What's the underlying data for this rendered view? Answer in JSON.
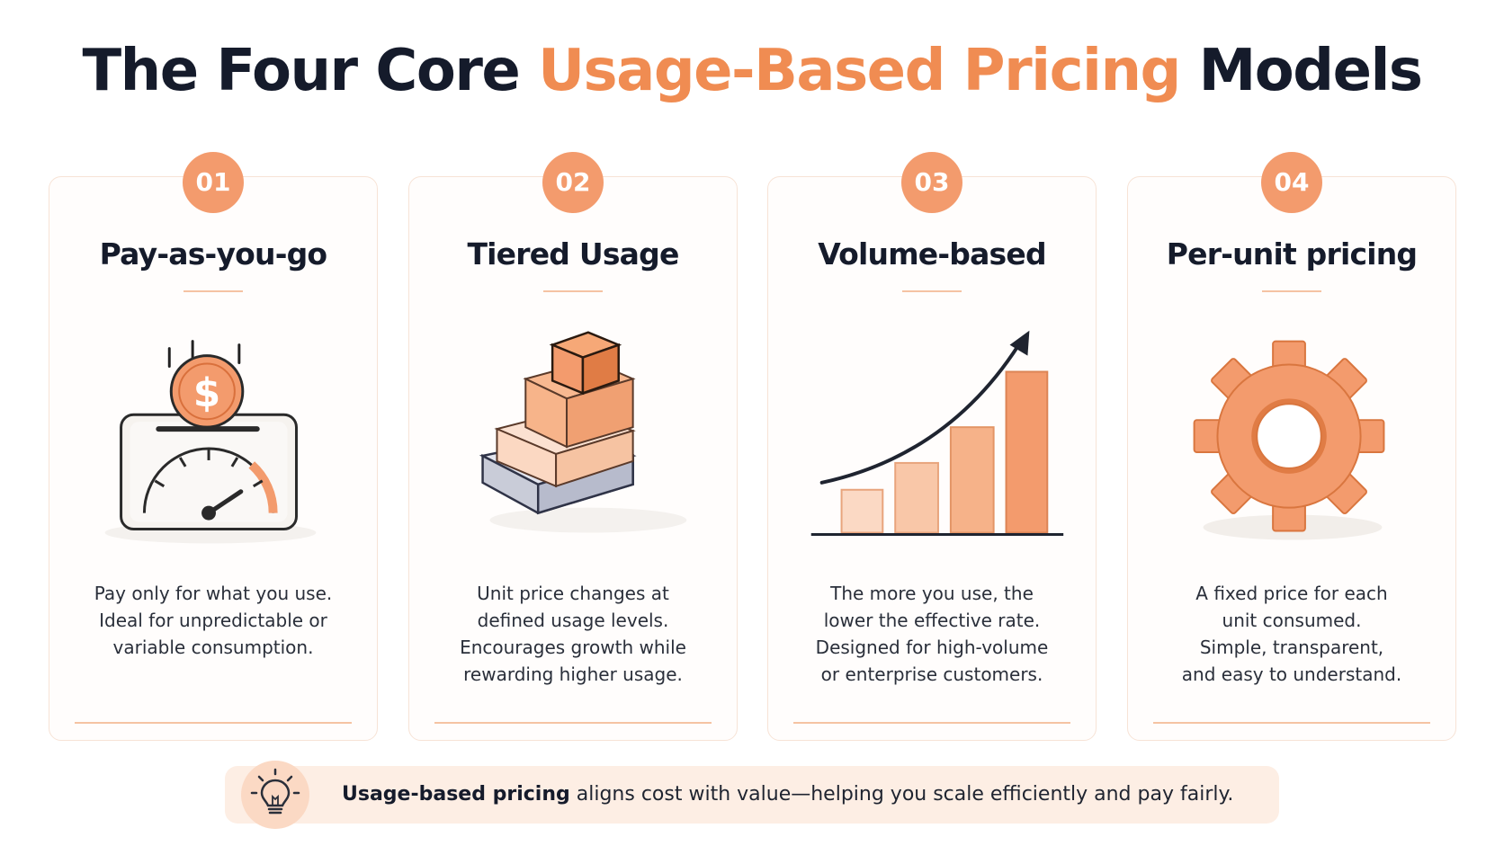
{
  "title": {
    "part1": "The Four Core ",
    "accent": "Usage-Based Pricing",
    "part2": " Models"
  },
  "colors": {
    "accent": "#f08c52",
    "badge": "#f39b6d",
    "dark": "#151b2b",
    "highlight_bg": "#fdeee4"
  },
  "cards": [
    {
      "number": "01",
      "title": "Pay-as-you-go",
      "icon": "meter-coin-icon",
      "description": [
        "Pay only for what you use.",
        "Ideal for unpredictable or",
        "variable consumption."
      ]
    },
    {
      "number": "02",
      "title": "Tiered Usage",
      "icon": "stacked-blocks-icon",
      "description": [
        "Unit price changes at",
        "defined usage levels.",
        "Encourages growth while",
        "rewarding higher usage."
      ]
    },
    {
      "number": "03",
      "title": "Volume-based",
      "icon": "rising-bars-icon",
      "description": [
        "The more you use, the",
        "lower the effective rate.",
        "Designed for high-volume",
        "or enterprise customers."
      ]
    },
    {
      "number": "04",
      "title": "Per-unit pricing",
      "icon": "gear-icon",
      "description": [
        "A fixed price for each",
        "unit consumed.",
        "Simple, transparent,",
        "and easy to understand."
      ]
    }
  ],
  "footer": {
    "icon": "lightbulb-icon",
    "bold": "Usage-based pricing",
    "text": " aligns cost with value—helping you scale efficiently and pay fairly."
  }
}
